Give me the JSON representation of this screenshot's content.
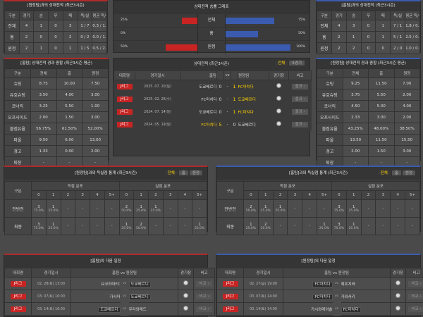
{
  "colors": {
    "home": "#c82424",
    "away": "#3a5bb0",
    "highlight": "#ffd200"
  },
  "h2h_left": {
    "title": "[원정팀]과의 상대전적 (최근3시즌)",
    "headers": [
      "구분",
      "경기",
      "승",
      "무",
      "패",
      "득/실",
      "평균 득/실"
    ],
    "rows": [
      [
        "전체",
        "4",
        "1",
        "0",
        "3",
        "1 / 7",
        "0.3 / 1.8"
      ],
      [
        "홈",
        "2",
        "0",
        "0",
        "2",
        "0 / 2",
        "0.0 / 1.0"
      ],
      [
        "원정",
        "2",
        "1",
        "0",
        "1",
        "1 / 5",
        "0.5 / 2.5"
      ]
    ]
  },
  "h2h_right": {
    "title": "[홈팀]과의 상대전적 (최근3시즌)",
    "headers": [
      "구분",
      "경기",
      "승",
      "무",
      "패",
      "득/실",
      "평균 득/실"
    ],
    "rows": [
      [
        "전체",
        "4",
        "3",
        "0",
        "1",
        "7 / 1",
        "1.8 / 0.3"
      ],
      [
        "홈",
        "2",
        "1",
        "0",
        "1",
        "5 / 1",
        "2.5 / 0.5"
      ],
      [
        "원정",
        "2",
        "2",
        "0",
        "0",
        "2 / 0",
        "1.0 / 0.0"
      ]
    ]
  },
  "graph": {
    "title": "상대전적 승률 그래프",
    "rows": [
      {
        "label": "전체",
        "home_pct": 25,
        "home_text": "25%",
        "away_pct": 75,
        "away_text": "75%"
      },
      {
        "label": "홈",
        "home_pct": 0,
        "home_text": "0%",
        "away_pct": 50,
        "away_text": "50%"
      },
      {
        "label": "원정",
        "home_pct": 50,
        "home_text": "50%",
        "away_pct": 100,
        "away_text": "100%"
      }
    ]
  },
  "avg_left": {
    "title": "[홈팀] 상대전적 경과 종합 (최근3시즌 평균)",
    "headers": [
      "구분",
      "전체",
      "홈",
      "원정"
    ],
    "rows": [
      [
        "슈팅",
        "8.75",
        "10.00",
        "7.50"
      ],
      [
        "유효슈팅",
        "3.50",
        "4.00",
        "3.00"
      ],
      [
        "코너킥",
        "3.25",
        "5.50",
        "1.00"
      ],
      [
        "오프사이드",
        "2.00",
        "1.50",
        "3.00"
      ],
      [
        "볼점유율",
        "56.75%",
        "61.50%",
        "52.00%"
      ],
      [
        "파울",
        "9.50",
        "6.00",
        "13.00"
      ],
      [
        "경고",
        "1.33",
        "0.00",
        "2.00"
      ],
      [
        "퇴장",
        "-",
        "-",
        "-"
      ]
    ]
  },
  "avg_right": {
    "title": "[원정팀] 상대전적 경과 종합 (최근3시즌 평균)",
    "headers": [
      "구분",
      "전체",
      "홈",
      "원정"
    ],
    "rows": [
      [
        "슈팅",
        "9.25",
        "11.50",
        "7.00"
      ],
      [
        "유효슈팅",
        "3.75",
        "5.50",
        "2.00"
      ],
      [
        "코너킥",
        "4.50",
        "5.00",
        "4.00"
      ],
      [
        "오프사이드",
        "2.33",
        "3.00",
        "2.00"
      ],
      [
        "볼점유율",
        "43.25%",
        "48.00%",
        "38.50%"
      ],
      [
        "파울",
        "13.50",
        "11.50",
        "15.50"
      ],
      [
        "경고",
        "2.00",
        "1.50",
        "3.00"
      ],
      [
        "퇴장",
        "-",
        "-",
        "-"
      ]
    ]
  },
  "recent": {
    "title": "상대전적 (최근3시즌)",
    "tabs": [
      "전체",
      "5경기"
    ],
    "headers": {
      "league": "대회명",
      "date": "경기일시",
      "home": "홈팀",
      "vs": "vs",
      "away": "원정팀",
      "venue": "경기장",
      "note": "비고"
    },
    "result_label": "결과",
    "matches": [
      {
        "league": "J리그",
        "date": "2025. 07. 20(일)",
        "home": "도쿄베르디",
        "hs": "0",
        "as": "1",
        "away": "FC마치다",
        "win": "away"
      },
      {
        "league": "J리그",
        "date": "2025. 02. 26(수)",
        "home": "FC마치다",
        "hs": "0",
        "as": "1",
        "away": "도쿄베르디",
        "win": "away"
      },
      {
        "league": "J리그",
        "date": "2024. 07. 14(일)",
        "home": "도쿄베르디",
        "hs": "0",
        "as": "1",
        "away": "FC마치다",
        "win": "away"
      },
      {
        "league": "J리그",
        "date": "2024. 05. 19(일)",
        "home": "FC마치다",
        "hs": "5",
        "as": "0",
        "away": "도쿄베르디",
        "win": "home"
      }
    ]
  },
  "dist_left": {
    "title": "[원정팀]과의 득실점 통계 (최근3시즌)",
    "tabs": [
      "전체",
      "홈",
      "원정"
    ],
    "label_col": "구분",
    "scored": "득점 분포",
    "conceded": "실점 분포",
    "cols": [
      "0",
      "1",
      "2",
      "3",
      "4",
      "5+"
    ],
    "rows": [
      {
        "label": "전반전",
        "cells": [
          [
            "3",
            "75.0%"
          ],
          [
            "1",
            "25.0%"
          ],
          [
            "-",
            ""
          ],
          [
            "-",
            ""
          ],
          [
            "-",
            ""
          ],
          [
            "-",
            ""
          ],
          [
            "2",
            "50.0%"
          ],
          [
            "1",
            "25.0%"
          ],
          [
            "1",
            "25.0%"
          ],
          [
            "-",
            ""
          ],
          [
            "-",
            ""
          ],
          [
            "-",
            ""
          ]
        ]
      },
      {
        "label": "최종",
        "cells": [
          [
            "3",
            "75.0%"
          ],
          [
            "1",
            "25.0%"
          ],
          [
            "-",
            ""
          ],
          [
            "-",
            ""
          ],
          [
            "-",
            ""
          ],
          [
            "-",
            ""
          ],
          [
            "1",
            "25.0%"
          ],
          [
            "2",
            "50.0%"
          ],
          [
            "-",
            ""
          ],
          [
            "-",
            ""
          ],
          [
            "-",
            ""
          ],
          [
            "1",
            "25.0%"
          ]
        ]
      }
    ]
  },
  "dist_right": {
    "title": "[홈팀]과의 득실점 통계 (최근3시즌)",
    "tabs": [
      "전체",
      "홈",
      "원정"
    ],
    "label_col": "구분",
    "scored": "득점 분포",
    "conceded": "실점 분포",
    "cols": [
      "0",
      "1",
      "2",
      "3",
      "4",
      "5+"
    ],
    "rows": [
      {
        "label": "전반전",
        "cells": [
          [
            "2",
            "50.0%"
          ],
          [
            "1",
            "25.0%"
          ],
          [
            "1",
            "25.0%"
          ],
          [
            "-",
            ""
          ],
          [
            "-",
            ""
          ],
          [
            "-",
            ""
          ],
          [
            "3",
            "75.0%"
          ],
          [
            "1",
            "25.0%"
          ],
          [
            "-",
            ""
          ],
          [
            "-",
            ""
          ],
          [
            "-",
            ""
          ],
          [
            "-",
            ""
          ]
        ]
      },
      {
        "label": "최종",
        "cells": [
          [
            "1",
            "25.0%"
          ],
          [
            "2",
            "50.0%"
          ],
          [
            "-",
            ""
          ],
          [
            "-",
            ""
          ],
          [
            "-",
            ""
          ],
          [
            "1",
            "25.0%"
          ],
          [
            "3",
            "75.0%"
          ],
          [
            "1",
            "25.0%"
          ],
          [
            "-",
            ""
          ],
          [
            "-",
            ""
          ],
          [
            "-",
            ""
          ],
          [
            "-",
            ""
          ]
        ]
      }
    ]
  },
  "next_left": {
    "title": "[홈팀]의 다음 일정",
    "headers": {
      "league": "대회명",
      "date": "경기일시",
      "teams": "홈팀 vs 원정팀",
      "venue": "경기장",
      "note": "비고"
    },
    "vs": "vs",
    "note_label": "비교",
    "matches": [
      {
        "league": "J리그",
        "date": "02. 28(토) 13:00",
        "home": "요코하마FC",
        "away": "도쿄베르디",
        "focus": "away"
      },
      {
        "league": "J리그",
        "date": "03. 07(토) 16:00",
        "home": "가시마",
        "away": "도쿄베르디",
        "focus": "away"
      },
      {
        "league": "J리그",
        "date": "03. 14(토) 16:00",
        "home": "도쿄베르디",
        "away": "우라와레드",
        "focus": "home"
      }
    ]
  },
  "next_right": {
    "title": "[원정팀]의 다음 일정",
    "headers": {
      "league": "대회명",
      "date": "경기일시",
      "teams": "홈팀 vs 원정팀",
      "venue": "경기장",
      "note": "비고"
    },
    "vs": "vs",
    "note_label": "비교",
    "matches": [
      {
        "league": "J리그",
        "date": "02. 27(금) 19:00",
        "home": "FC마치다",
        "away": "제프지바",
        "focus": "home"
      },
      {
        "league": "J리그",
        "date": "03. 07(토) 14:00",
        "home": "FC마치다",
        "away": "가와사키",
        "focus": "home"
      },
      {
        "league": "J리그",
        "date": "03. 14(토) 14:00",
        "home": "가시와레이솔",
        "away": "FC마치다",
        "focus": "away"
      }
    ]
  }
}
